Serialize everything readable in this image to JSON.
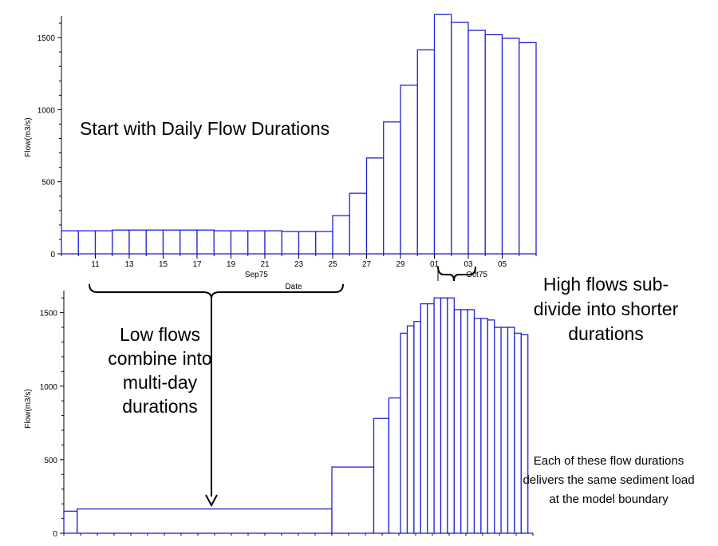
{
  "chart_data": [
    {
      "type": "bar",
      "ylabel": "Flow(m3/s)",
      "xlabel": "Date",
      "ylim": [
        0,
        1650
      ],
      "yticks": [
        0,
        500,
        1000,
        1500
      ],
      "x_day_range": [
        9,
        37
      ],
      "xtick_labels": [
        "11",
        "13",
        "15",
        "17",
        "19",
        "21",
        "23",
        "25",
        "27",
        "29",
        "01",
        "03",
        "05"
      ],
      "xtick_days": [
        11,
        13,
        15,
        17,
        19,
        21,
        23,
        25,
        27,
        29,
        31,
        33,
        35
      ],
      "month_labels": [
        {
          "label": "Sep75",
          "day": 20.5
        },
        {
          "label": "Oct75",
          "day": 33.5
        }
      ],
      "bars": [
        {
          "start": 9,
          "end": 10,
          "value": 160
        },
        {
          "start": 10,
          "end": 11,
          "value": 160
        },
        {
          "start": 11,
          "end": 12,
          "value": 160
        },
        {
          "start": 12,
          "end": 13,
          "value": 165
        },
        {
          "start": 13,
          "end": 14,
          "value": 165
        },
        {
          "start": 14,
          "end": 15,
          "value": 165
        },
        {
          "start": 15,
          "end": 16,
          "value": 165
        },
        {
          "start": 16,
          "end": 17,
          "value": 165
        },
        {
          "start": 17,
          "end": 18,
          "value": 165
        },
        {
          "start": 18,
          "end": 19,
          "value": 160
        },
        {
          "start": 19,
          "end": 20,
          "value": 160
        },
        {
          "start": 20,
          "end": 21,
          "value": 160
        },
        {
          "start": 21,
          "end": 22,
          "value": 160
        },
        {
          "start": 22,
          "end": 23,
          "value": 155
        },
        {
          "start": 23,
          "end": 24,
          "value": 155
        },
        {
          "start": 24,
          "end": 25,
          "value": 155
        },
        {
          "start": 25,
          "end": 26,
          "value": 265
        },
        {
          "start": 26,
          "end": 27,
          "value": 420
        },
        {
          "start": 27,
          "end": 28,
          "value": 665
        },
        {
          "start": 28,
          "end": 29,
          "value": 915
        },
        {
          "start": 29,
          "end": 30,
          "value": 1170
        },
        {
          "start": 30,
          "end": 31,
          "value": 1415
        },
        {
          "start": 31,
          "end": 32,
          "value": 1660
        },
        {
          "start": 32,
          "end": 33,
          "value": 1605
        },
        {
          "start": 33,
          "end": 34,
          "value": 1550
        },
        {
          "start": 34,
          "end": 35,
          "value": 1520
        },
        {
          "start": 35,
          "end": 36,
          "value": 1495
        },
        {
          "start": 36,
          "end": 37,
          "value": 1465
        }
      ]
    },
    {
      "type": "bar",
      "ylabel": "Flow(m3/s)",
      "ylim": [
        0,
        1650
      ],
      "yticks": [
        0,
        500,
        1000,
        1500
      ],
      "x_day_range": [
        9,
        37
      ],
      "bars": [
        {
          "start": 9,
          "end": 9.8,
          "value": 150
        },
        {
          "start": 9.8,
          "end": 25,
          "value": 165
        },
        {
          "start": 25,
          "end": 27.5,
          "value": 450
        },
        {
          "start": 27.5,
          "end": 28.4,
          "value": 780
        },
        {
          "start": 28.4,
          "end": 29.1,
          "value": 920
        },
        {
          "start": 29.1,
          "end": 29.5,
          "value": 1360
        },
        {
          "start": 29.5,
          "end": 29.9,
          "value": 1410
        },
        {
          "start": 29.9,
          "end": 30.3,
          "value": 1440
        },
        {
          "start": 30.3,
          "end": 30.7,
          "value": 1560
        },
        {
          "start": 30.7,
          "end": 31.1,
          "value": 1560
        },
        {
          "start": 31.1,
          "end": 31.5,
          "value": 1600
        },
        {
          "start": 31.5,
          "end": 31.9,
          "value": 1600
        },
        {
          "start": 31.9,
          "end": 32.3,
          "value": 1600
        },
        {
          "start": 32.3,
          "end": 32.7,
          "value": 1520
        },
        {
          "start": 32.7,
          "end": 33.1,
          "value": 1520
        },
        {
          "start": 33.1,
          "end": 33.5,
          "value": 1520
        },
        {
          "start": 33.5,
          "end": 33.9,
          "value": 1460
        },
        {
          "start": 33.9,
          "end": 34.3,
          "value": 1460
        },
        {
          "start": 34.3,
          "end": 34.7,
          "value": 1450
        },
        {
          "start": 34.7,
          "end": 35.1,
          "value": 1400
        },
        {
          "start": 35.1,
          "end": 35.5,
          "value": 1400
        },
        {
          "start": 35.5,
          "end": 35.9,
          "value": 1400
        },
        {
          "start": 35.9,
          "end": 36.3,
          "value": 1360
        },
        {
          "start": 36.3,
          "end": 36.7,
          "value": 1350
        }
      ]
    }
  ],
  "annotations": {
    "start": "Start with Daily Flow Durations",
    "low": "Low flows combine into multi-day durations",
    "high": "High flows sub-divide into shorter durations",
    "each": "Each of these flow durations delivers the same sediment load at the model boundary"
  },
  "colors": {
    "bar_stroke": "#2323d6",
    "bar_fill": "#ffffff",
    "axis": "#000000",
    "annotation": "#000000"
  }
}
